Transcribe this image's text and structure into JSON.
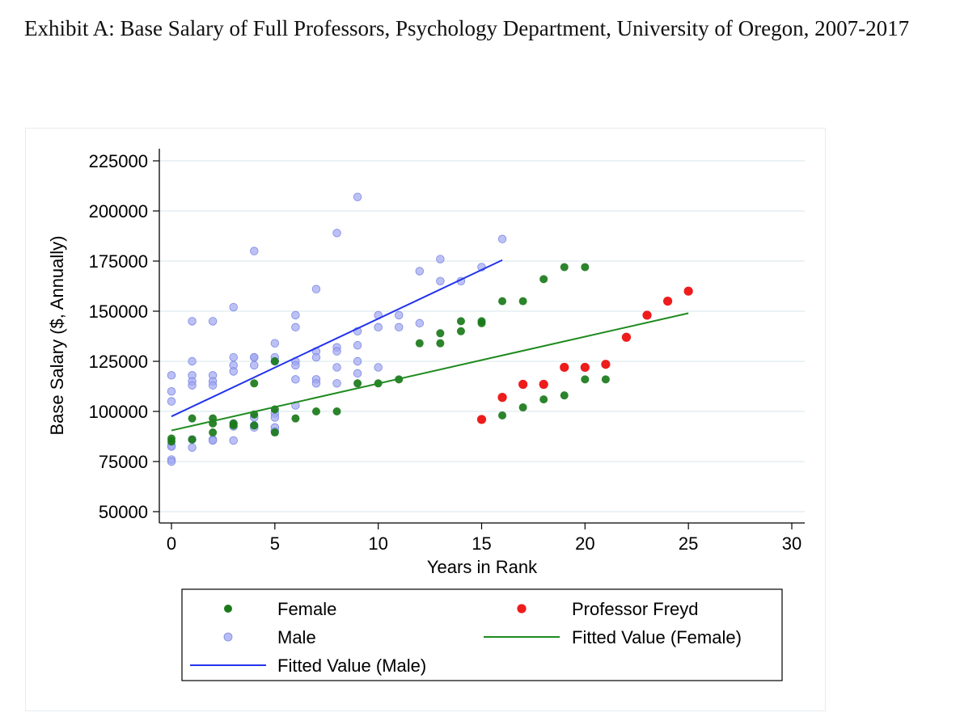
{
  "chart_data": {
    "type": "scatter",
    "title": "Exhibit A: Base Salary of Full Professors, Psychology Department, University of Oregon, 2007-2017",
    "xlabel": "Years in Rank",
    "ylabel": "Base Salary ($, Annually)",
    "xlim": [
      0,
      30
    ],
    "ylim": [
      50000,
      225000
    ],
    "x_ticks": [
      0,
      5,
      10,
      15,
      20,
      25,
      30
    ],
    "y_ticks": [
      50000,
      75000,
      100000,
      125000,
      150000,
      175000,
      200000,
      225000
    ],
    "grid": "horizontal",
    "legend_position": "bottom",
    "colors": {
      "female": "#1a7a1a",
      "male": "#9fa7ef",
      "freyd": "#ee1c1c",
      "fit_male": "#2233ee",
      "fit_female": "#1f8a1f"
    },
    "series": [
      {
        "name": "Male",
        "kind": "points",
        "points": [
          [
            0,
            118000
          ],
          [
            0,
            110000
          ],
          [
            0,
            105000
          ],
          [
            0,
            83000
          ],
          [
            0,
            82500
          ],
          [
            0,
            76000
          ],
          [
            0,
            75000
          ],
          [
            1,
            145000
          ],
          [
            1,
            125000
          ],
          [
            1,
            118000
          ],
          [
            1,
            115000
          ],
          [
            1,
            113000
          ],
          [
            1,
            86000
          ],
          [
            1,
            82000
          ],
          [
            2,
            145000
          ],
          [
            2,
            118000
          ],
          [
            2,
            115000
          ],
          [
            2,
            113000
          ],
          [
            2,
            86000
          ],
          [
            2,
            85500
          ],
          [
            3,
            152000
          ],
          [
            3,
            127000
          ],
          [
            3,
            123000
          ],
          [
            3,
            120000
          ],
          [
            3,
            94000
          ],
          [
            3,
            92500
          ],
          [
            3,
            85500
          ],
          [
            4,
            180000
          ],
          [
            4,
            127000
          ],
          [
            4,
            127000
          ],
          [
            4,
            123000
          ],
          [
            4,
            97000
          ],
          [
            4,
            93000
          ],
          [
            4,
            92000
          ],
          [
            5,
            134000
          ],
          [
            5,
            127000
          ],
          [
            5,
            125000
          ],
          [
            5,
            99000
          ],
          [
            5,
            97000
          ],
          [
            5,
            92000
          ],
          [
            5,
            90000
          ],
          [
            6,
            148000
          ],
          [
            6,
            142000
          ],
          [
            6,
            125000
          ],
          [
            6,
            123000
          ],
          [
            6,
            116000
          ],
          [
            6,
            103000
          ],
          [
            7,
            161000
          ],
          [
            7,
            130000
          ],
          [
            7,
            127000
          ],
          [
            7,
            116000
          ],
          [
            7,
            114000
          ],
          [
            8,
            189000
          ],
          [
            8,
            132000
          ],
          [
            8,
            130000
          ],
          [
            8,
            122000
          ],
          [
            8,
            114000
          ],
          [
            9,
            207000
          ],
          [
            9,
            140000
          ],
          [
            9,
            133000
          ],
          [
            9,
            125000
          ],
          [
            9,
            119000
          ],
          [
            10,
            148000
          ],
          [
            10,
            142000
          ],
          [
            10,
            122000
          ],
          [
            11,
            148000
          ],
          [
            11,
            142000
          ],
          [
            12,
            170000
          ],
          [
            12,
            144000
          ],
          [
            13,
            176000
          ],
          [
            13,
            165000
          ],
          [
            14,
            165000
          ],
          [
            15,
            172000
          ],
          [
            16,
            186000
          ]
        ]
      },
      {
        "name": "Female",
        "kind": "points",
        "points": [
          [
            0,
            86500
          ],
          [
            0,
            85000
          ],
          [
            1,
            96500
          ],
          [
            1,
            86000
          ],
          [
            2,
            96500
          ],
          [
            2,
            94000
          ],
          [
            2,
            89500
          ],
          [
            3,
            94000
          ],
          [
            3,
            93000
          ],
          [
            4,
            114000
          ],
          [
            4,
            98500
          ],
          [
            4,
            93000
          ],
          [
            5,
            125000
          ],
          [
            5,
            101000
          ],
          [
            5,
            89500
          ],
          [
            6,
            96500
          ],
          [
            7,
            100000
          ],
          [
            8,
            100000
          ],
          [
            9,
            114000
          ],
          [
            10,
            114000
          ],
          [
            11,
            116000
          ],
          [
            12,
            134000
          ],
          [
            13,
            139000
          ],
          [
            13,
            134000
          ],
          [
            14,
            145000
          ],
          [
            14,
            140000
          ],
          [
            15,
            145000
          ],
          [
            15,
            144000
          ],
          [
            16,
            155000
          ],
          [
            16,
            98000
          ],
          [
            17,
            155000
          ],
          [
            17,
            102000
          ],
          [
            18,
            166000
          ],
          [
            18,
            106000
          ],
          [
            19,
            172000
          ],
          [
            19,
            108000
          ],
          [
            20,
            172000
          ],
          [
            20,
            116000
          ],
          [
            21,
            116000
          ]
        ]
      },
      {
        "name": "Professor Freyd",
        "kind": "points",
        "points": [
          [
            15,
            96000
          ],
          [
            16,
            107000
          ],
          [
            17,
            113500
          ],
          [
            18,
            113500
          ],
          [
            19,
            122000
          ],
          [
            20,
            122000
          ],
          [
            21,
            123500
          ],
          [
            22,
            137000
          ],
          [
            23,
            148000
          ],
          [
            24,
            155000
          ],
          [
            25,
            160000
          ]
        ]
      },
      {
        "name": "Fitted Value (Male)",
        "kind": "line",
        "points": [
          [
            0,
            97500
          ],
          [
            16,
            175500
          ]
        ]
      },
      {
        "name": "Fitted Value (Female)",
        "kind": "line",
        "points": [
          [
            0,
            90500
          ],
          [
            25,
            149000
          ]
        ]
      }
    ],
    "legend": [
      {
        "label": "Female",
        "series": "Female",
        "symbol": "dot"
      },
      {
        "label": "Professor Freyd",
        "series": "Professor Freyd",
        "symbol": "dot"
      },
      {
        "label": "Male",
        "series": "Male",
        "symbol": "dot"
      },
      {
        "label": "Fitted Value (Female)",
        "series": "Fitted Value (Female)",
        "symbol": "line"
      },
      {
        "label": "Fitted Value (Male)",
        "series": "Fitted Value (Male)",
        "symbol": "line"
      }
    ]
  }
}
